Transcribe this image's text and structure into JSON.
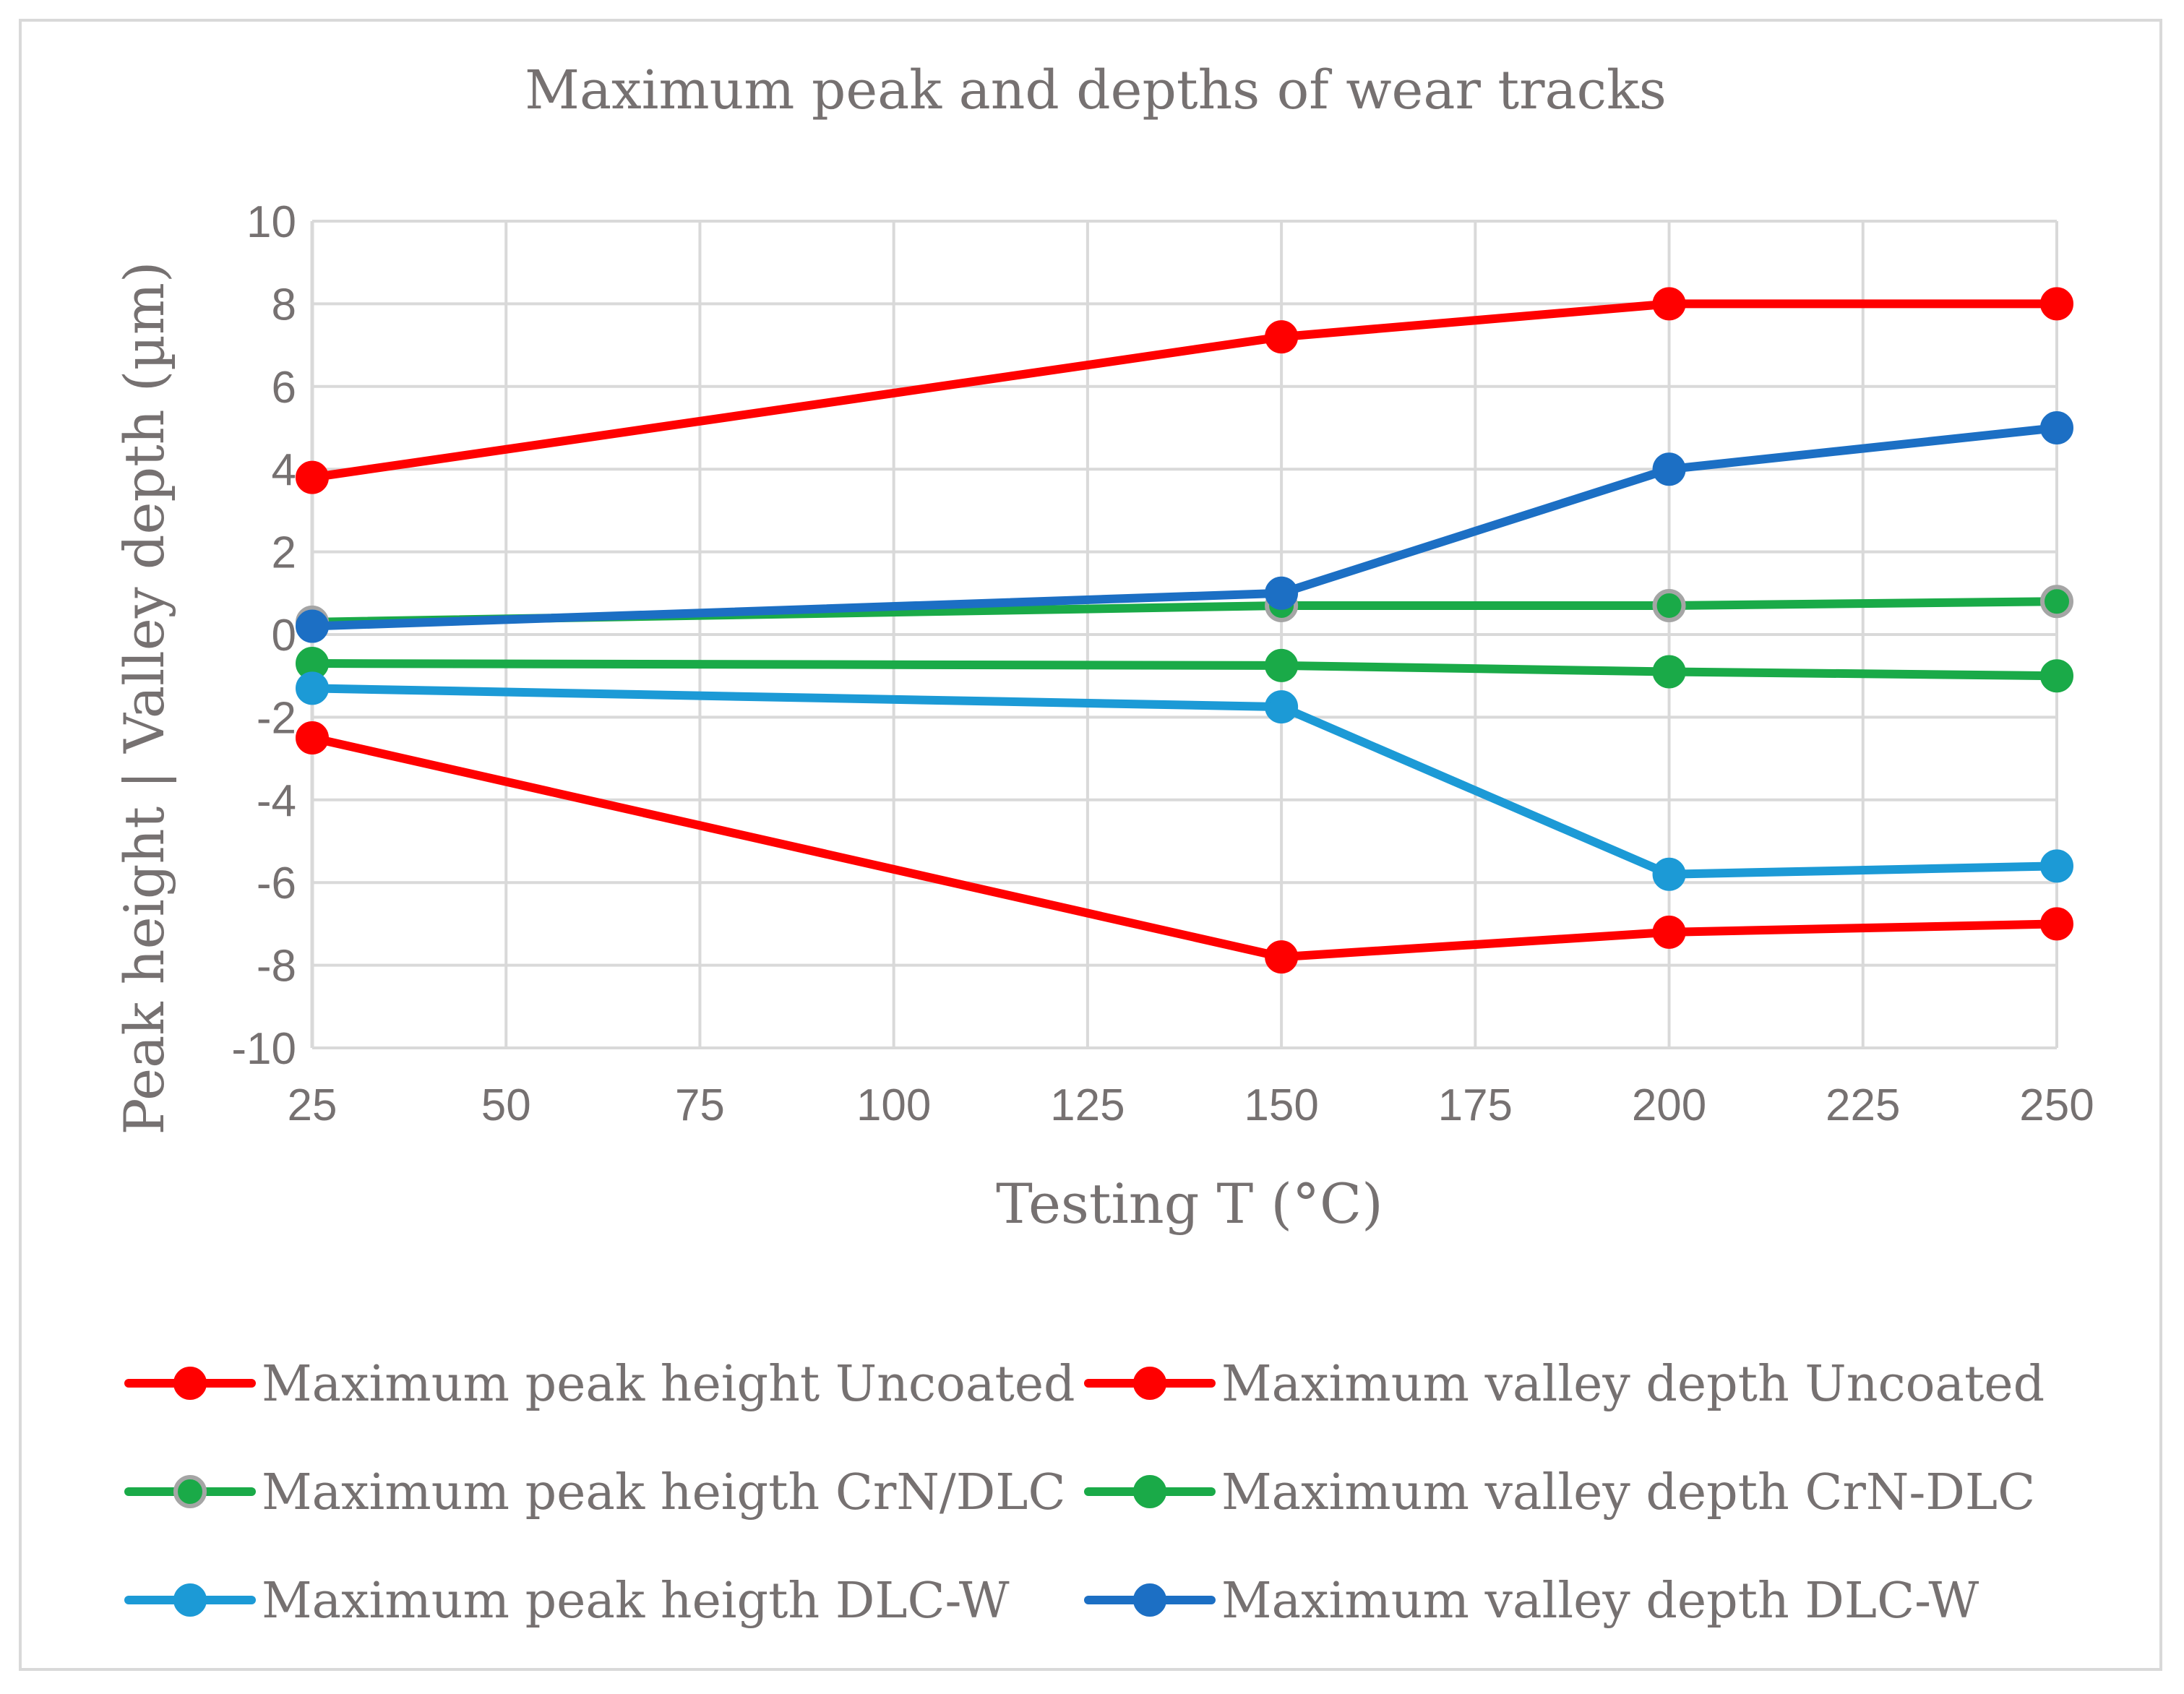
{
  "chart_data": {
    "type": "line",
    "title": "Maximum peak and depths of wear tracks",
    "xlabel": "Testing T (°C)",
    "ylabel": "Peak height | Valley  depth (µm)",
    "xlim": [
      25,
      250
    ],
    "ylim": [
      -10,
      10
    ],
    "x_ticks": [
      "25",
      "50",
      "75",
      "100",
      "125",
      "150",
      "175",
      "200",
      "225",
      "250"
    ],
    "y_ticks": [
      "10",
      "8",
      "6",
      "4",
      "2",
      "0",
      "-2",
      "-4",
      "-6",
      "-8",
      "-10"
    ],
    "grid": true,
    "legend_position": "bottom",
    "x": [
      25,
      150,
      200,
      250
    ],
    "series": [
      {
        "name": "Maximum peak height Uncoated",
        "color": "#ff0000",
        "marker_edge": "#ff0000",
        "values": [
          3.8,
          7.2,
          8.0,
          8.0
        ]
      },
      {
        "name": "Maximum valley depth Uncoated",
        "color": "#ff0000",
        "marker_edge": "#ff0000",
        "values": [
          -2.5,
          -7.8,
          -7.2,
          -7.0
        ]
      },
      {
        "name": "Maximum peak heigth CrN/DLC",
        "color": "#1aaa48",
        "marker_edge": "#a5a5a5",
        "values": [
          0.3,
          0.7,
          0.7,
          0.8
        ]
      },
      {
        "name": "Maximum valley depth CrN-DLC",
        "color": "#1aaa48",
        "marker_edge": "#1aaa48",
        "values": [
          -0.7,
          -0.75,
          -0.9,
          -1.0
        ]
      },
      {
        "name": "Maximum peak heigth DLC-W",
        "color": "#1c9ad6",
        "marker_edge": "#1c9ad6",
        "values": [
          -1.3,
          -1.75,
          -5.8,
          -5.6
        ]
      },
      {
        "name": "Maximum valley depth DLC-W",
        "color": "#1c6fc4",
        "marker_edge": "#1c6fc4",
        "values": [
          0.2,
          1.0,
          4.0,
          5.0
        ]
      }
    ]
  }
}
